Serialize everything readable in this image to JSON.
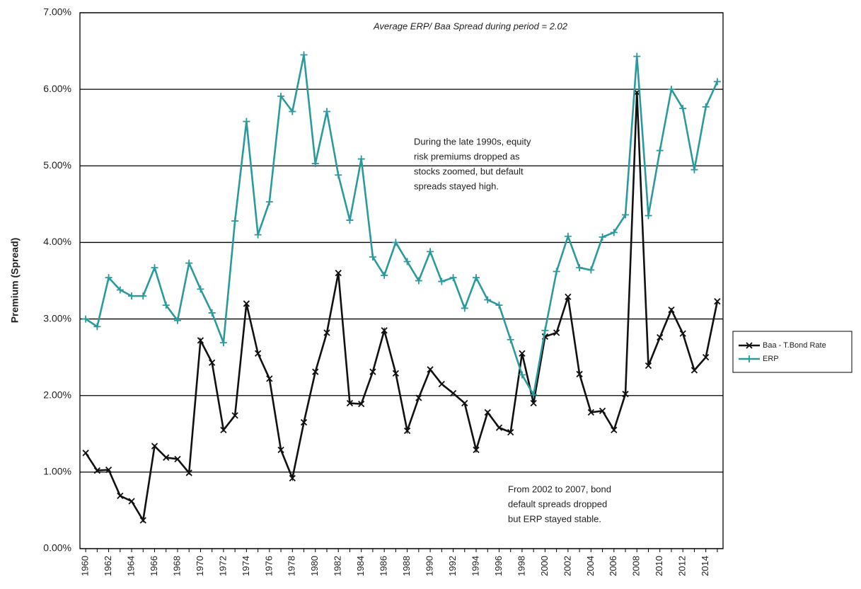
{
  "chart_data": {
    "type": "line",
    "y_label": "Premium (Spread)",
    "annotations": [
      [
        "Average ERP/ Baa Spread during period = 2.02"
      ],
      [
        "During the late 1990s, equity",
        "risk premiums dropped as",
        "stocks zoomed, but default",
        "spreads stayed high."
      ],
      [
        "From 2002 to 2007, bond",
        "default spreads dropped",
        "but ERP stayed stable."
      ]
    ],
    "categories": [
      "1960",
      null,
      "1962",
      null,
      "1964",
      null,
      "1966",
      null,
      "1968",
      null,
      "1970",
      null,
      "1972",
      null,
      "1974",
      null,
      "1976",
      null,
      "1978",
      null,
      "1980",
      null,
      "1982",
      null,
      "1984",
      null,
      "1986",
      null,
      "1988",
      null,
      "1990",
      null,
      "1992",
      null,
      "1994",
      null,
      "1996",
      null,
      "1998",
      null,
      "2000",
      null,
      "2002",
      null,
      "2004",
      null,
      "2006",
      null,
      "2008",
      null,
      "2010",
      null,
      "2012",
      null,
      "2014",
      null
    ],
    "series": [
      {
        "name": "Baa - T.Bond Rate",
        "color": "#111111",
        "marker": "x",
        "values": [
          1.25,
          1.02,
          1.03,
          0.69,
          0.62,
          0.37,
          1.34,
          1.19,
          1.17,
          0.99,
          2.72,
          2.43,
          1.55,
          1.74,
          3.2,
          2.55,
          2.22,
          1.29,
          0.92,
          1.65,
          2.31,
          2.82,
          3.6,
          1.9,
          1.89,
          2.31,
          2.85,
          2.29,
          1.54,
          1.97,
          2.34,
          2.15,
          2.03,
          1.9,
          1.29,
          1.78,
          1.58,
          1.52,
          2.55,
          1.9,
          2.77,
          2.82,
          3.29,
          2.28,
          1.78,
          1.8,
          1.55,
          2.02,
          5.96,
          2.39,
          2.76,
          3.12,
          2.81,
          2.33,
          2.5,
          3.23
        ]
      },
      {
        "name": "ERP",
        "color": "#2a9a9c",
        "marker": "+",
        "values": [
          3.0,
          2.9,
          3.54,
          3.38,
          3.3,
          3.3,
          3.67,
          3.18,
          2.98,
          3.73,
          3.39,
          3.08,
          2.69,
          4.28,
          5.58,
          4.1,
          4.53,
          5.91,
          5.71,
          6.45,
          5.03,
          5.71,
          4.88,
          4.29,
          5.09,
          3.81,
          3.57,
          4.0,
          3.75,
          3.5,
          3.88,
          3.49,
          3.54,
          3.14,
          3.54,
          3.25,
          3.18,
          2.73,
          2.27,
          2.01,
          2.85,
          3.62,
          4.08,
          3.67,
          3.64,
          4.07,
          4.13,
          4.36,
          6.43,
          4.35,
          5.2,
          6.0,
          5.75,
          4.95,
          5.77,
          6.1
        ]
      }
    ],
    "ylim": [
      0,
      7
    ],
    "yticks": [
      {
        "value": 0,
        "label": "0.00%"
      },
      {
        "value": 1,
        "label": "1.00%"
      },
      {
        "value": 2,
        "label": "2.00%"
      },
      {
        "value": 3,
        "label": "3.00%"
      },
      {
        "value": 4,
        "label": "4.00%"
      },
      {
        "value": 5,
        "label": "5.00%"
      },
      {
        "value": 6,
        "label": "6.00%"
      },
      {
        "value": 7,
        "label": "7.00%"
      }
    ],
    "grid": true,
    "legend": "right"
  }
}
